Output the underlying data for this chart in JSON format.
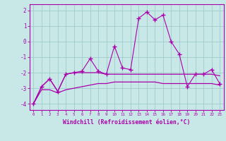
{
  "x": [
    0,
    1,
    2,
    3,
    4,
    5,
    6,
    7,
    8,
    9,
    10,
    11,
    12,
    13,
    14,
    15,
    16,
    17,
    18,
    19,
    20,
    21,
    22,
    23
  ],
  "line1": [
    -4.0,
    -2.9,
    -2.4,
    -3.2,
    -2.1,
    -2.0,
    -1.9,
    -1.1,
    -1.9,
    -2.1,
    -0.3,
    -1.7,
    -1.8,
    1.5,
    1.9,
    1.4,
    1.7,
    0.0,
    -0.8,
    -2.9,
    -2.1,
    -2.1,
    -1.8,
    -2.7
  ],
  "line2": [
    -4.0,
    -2.9,
    -2.4,
    -3.2,
    -2.1,
    -2.0,
    -2.0,
    -2.0,
    -2.0,
    -2.1,
    -2.1,
    -2.1,
    -2.1,
    -2.1,
    -2.1,
    -2.1,
    -2.1,
    -2.1,
    -2.1,
    -2.1,
    -2.1,
    -2.1,
    -2.1,
    -2.2
  ],
  "line3": [
    -4.0,
    -3.1,
    -3.1,
    -3.3,
    -3.1,
    -3.0,
    -2.9,
    -2.8,
    -2.7,
    -2.7,
    -2.6,
    -2.6,
    -2.6,
    -2.6,
    -2.6,
    -2.6,
    -2.7,
    -2.7,
    -2.7,
    -2.7,
    -2.7,
    -2.7,
    -2.7,
    -2.8
  ],
  "background_color": "#c8e8e8",
  "grid_color": "#a0cccc",
  "line_color": "#aa00aa",
  "ylim": [
    -4.4,
    2.4
  ],
  "xlim": [
    -0.5,
    23.5
  ],
  "yticks": [
    -4,
    -3,
    -2,
    -1,
    0,
    1,
    2
  ],
  "xticks": [
    0,
    1,
    2,
    3,
    4,
    5,
    6,
    7,
    8,
    9,
    10,
    11,
    12,
    13,
    14,
    15,
    16,
    17,
    18,
    19,
    20,
    21,
    22,
    23
  ],
  "xlabel": "Windchill (Refroidissement éolien,°C)",
  "marker": "+"
}
